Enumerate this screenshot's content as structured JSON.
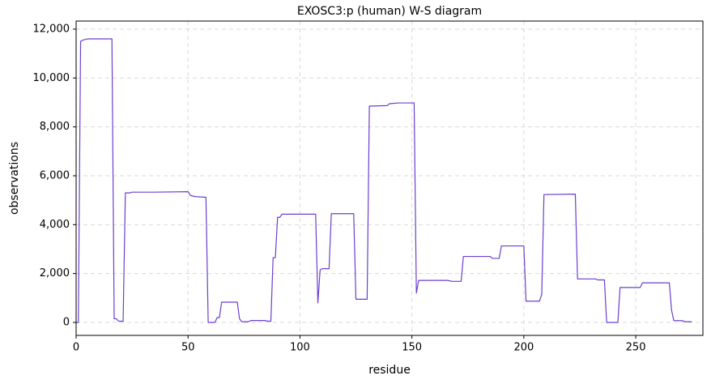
{
  "chart_data": {
    "type": "line",
    "title": "EXOSC3:p (human) W-S diagram",
    "x_label": "residue",
    "y_label": "observations",
    "x": [
      0,
      1,
      2,
      3,
      5,
      16,
      17,
      18,
      19,
      21,
      22,
      24,
      25,
      35,
      50,
      51,
      53,
      58,
      59,
      62,
      63,
      64,
      65,
      72,
      73,
      74,
      77,
      78,
      84,
      86,
      87,
      88,
      89,
      90,
      91,
      92,
      107,
      108,
      109,
      110,
      113,
      114,
      124,
      125,
      130,
      131,
      139,
      140,
      144,
      151,
      152,
      153,
      166,
      168,
      172,
      173,
      185,
      186,
      189,
      190,
      200,
      201,
      207,
      208,
      209,
      223,
      224,
      232,
      233,
      236,
      237,
      242,
      243,
      252,
      253,
      265,
      266,
      267,
      271,
      272,
      275
    ],
    "values": [
      0,
      0,
      11500,
      11550,
      11600,
      11600,
      150,
      150,
      50,
      50,
      5300,
      5300,
      5330,
      5330,
      5350,
      5200,
      5150,
      5120,
      0,
      0,
      200,
      200,
      830,
      830,
      150,
      30,
      30,
      80,
      80,
      50,
      50,
      2650,
      2650,
      4300,
      4300,
      4430,
      4430,
      800,
      2150,
      2200,
      2200,
      4450,
      4450,
      950,
      950,
      8850,
      8870,
      8950,
      8980,
      8980,
      1200,
      1720,
      1720,
      1680,
      1680,
      2700,
      2700,
      2620,
      2620,
      3130,
      3130,
      870,
      870,
      1150,
      5230,
      5250,
      1780,
      1780,
      1740,
      1740,
      0,
      0,
      1430,
      1430,
      1620,
      1620,
      500,
      80,
      70,
      30,
      30
    ],
    "color": "#6a3fd0",
    "xlim": [
      0,
      280
    ],
    "ylim": [
      -530,
      12330
    ],
    "xticks": [
      0,
      50,
      100,
      150,
      200,
      250
    ],
    "yticks": [
      0,
      {
        "value": 2000,
        "label": "2,000"
      },
      {
        "value": 4000,
        "label": "4,000"
      },
      {
        "value": 6000,
        "label": "6,000"
      },
      {
        "value": 8000,
        "label": "8,000"
      },
      {
        "value": 10000,
        "label": "10,000"
      },
      {
        "value": 12000,
        "label": "12,000"
      }
    ],
    "grid": true
  }
}
